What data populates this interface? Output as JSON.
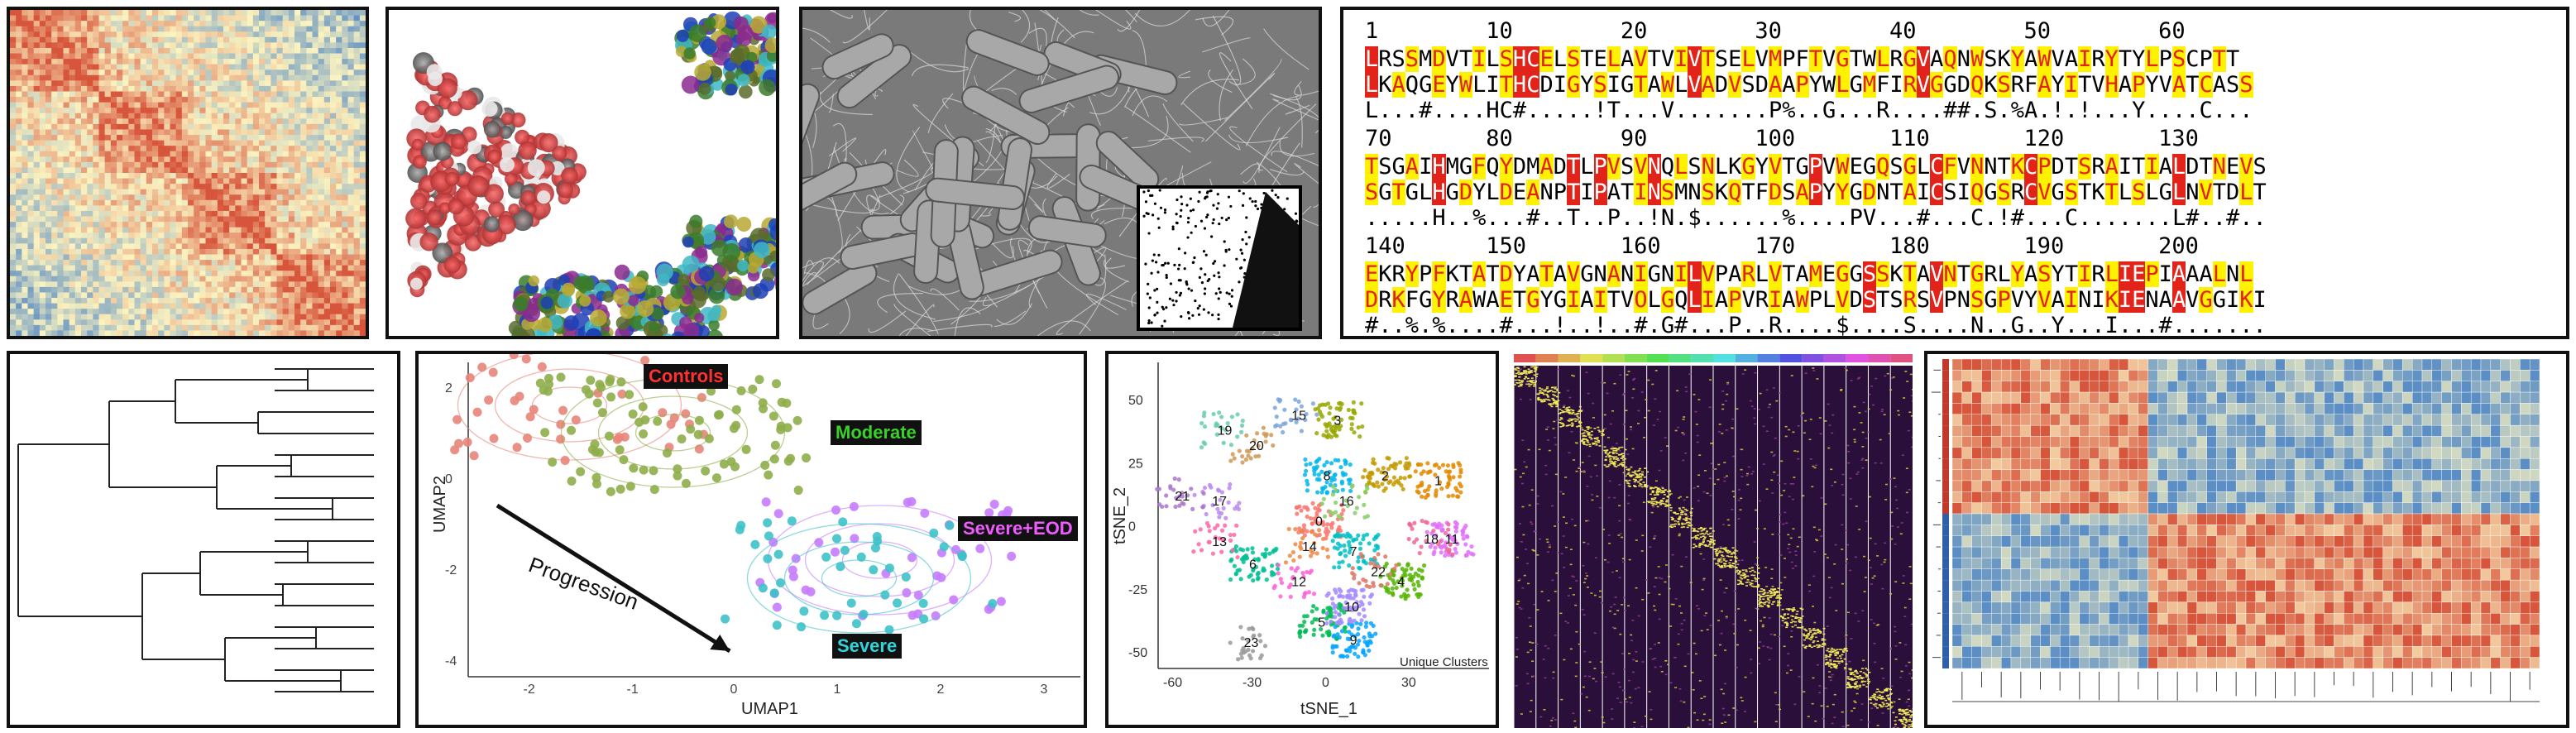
{
  "alignment": {
    "ruler1": [
      "1",
      "10",
      "20",
      "30",
      "40",
      "50",
      "60"
    ],
    "ruler2": [
      "70",
      "80",
      "90",
      "100",
      "110",
      "120",
      "130"
    ],
    "ruler3": [
      "140",
      "150",
      "160",
      "170",
      "180",
      "190",
      "200"
    ],
    "block1": [
      "LRSSMDVTILSHCELSTELAVTVIVTSELVMPFTVGTWLRGVAQNWSKYAWVAIRYTYLPSCPTT",
      "LKAQGEYWLITHCDIGYSIGTAWLVADVSDAAPYWLGMFIRVGGDQKSRFAYITVHAPYVATCASS",
      "L...#....HC#.....!T...V.......P%..G...R....##.S.%A.!.!...Y....C..."
    ],
    "block2": [
      "TSGAIHMGFQYDMADTLPVSVNQLSNLKGYVTGPVWEGQSGLCFVNNTKCPDTSRAITIALDTNEVS",
      "SGTGLHGDYLDEANPTIPATINSMNSKQTFDSAPYYGDNTAICSIQGSRCVGSTKTLSLGLNVTDLT",
      ".....H..%...#..T..P..!N.$......%....PV...#...C.!#...C.......L#..#.."
    ],
    "block3": [
      "EKRYPFKTATDYATAVGNANIGNILVPARLVTAMEGGSSKTAVNTGRLYASYTIRLIEPIAAALNL",
      "DRKFGYRAWAETGYGIAITVOLGQLIAPVRIAWPLVDSTSRSVPNSGPVYVAINIKIENAAVGGIKI",
      "#..%.%....#...!..!..#.G#...P..R....$....S....N..G..Y...I...#....... "
    ]
  },
  "umap": {
    "xlabel": "UMAP1",
    "ylabel": "UMAP2",
    "xticks": [
      "-2",
      "-1",
      "0",
      "1",
      "2",
      "3"
    ],
    "yticks": [
      "2",
      "0",
      "-2",
      "-4"
    ],
    "arrow_label": "Progression",
    "groups": [
      {
        "name": "Controls",
        "color": "#e8857a",
        "text_color": "#ff3030"
      },
      {
        "name": "Moderate",
        "color": "#8fae4a",
        "text_color": "#39d12a"
      },
      {
        "name": "Severe+EOD",
        "color": "#c77cff",
        "text_color": "#ef5bff"
      },
      {
        "name": "Severe",
        "color": "#3ec1c9",
        "text_color": "#32d3da"
      }
    ]
  },
  "tsne": {
    "xlabel": "tSNE_1",
    "ylabel": "tSNE_2",
    "xticks": [
      "-60",
      "-30",
      "0",
      "30"
    ],
    "yticks": [
      "50",
      "25",
      "0",
      "-25",
      "-50"
    ],
    "legend_note": "Unique Clusters",
    "clusters": [
      "0",
      "1",
      "2",
      "3",
      "4",
      "5",
      "6",
      "7",
      "8",
      "9",
      "10",
      "11",
      "12",
      "13",
      "14",
      "15",
      "16",
      "17",
      "18",
      "19",
      "20",
      "21",
      "22",
      "23"
    ]
  },
  "colors": {
    "heat_warm": "#d7553b",
    "heat_cool": "#5b8ec4",
    "heat_mid": "#fbf3c0",
    "scrna_bg": "#2a0f3a",
    "scrna_hi": "#f5f05a"
  },
  "icons": {
    "protein": "protein-surface-render",
    "sem": "sem-micrograph",
    "tree": "dendrogram-icon"
  }
}
